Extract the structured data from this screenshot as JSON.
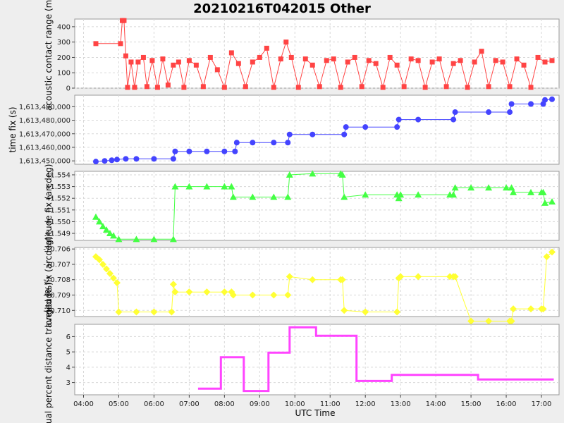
{
  "title": "20210216T042015 Other",
  "xlabel": "UTC Time",
  "x_ticks": [
    "04:00",
    "05:00",
    "06:00",
    "07:00",
    "08:00",
    "09:00",
    "10:00",
    "11:00",
    "12:00",
    "13:00",
    "14:00",
    "15:00",
    "16:00",
    "17:00"
  ],
  "colors": {
    "range": "#ff4444",
    "time": "#4444ff",
    "lat": "#44ff44",
    "lon": "#ffff33",
    "pct": "#ff44ff",
    "grid": "#d8d8d8",
    "panel_bg": "#ffffff",
    "page_bg": "#eeeeee"
  },
  "chart_data": [
    {
      "type": "line",
      "ylabel": "acoustic contact range (m)",
      "ylim": [
        0,
        450
      ],
      "yticks": [
        "0",
        "100",
        "200",
        "300",
        "400"
      ],
      "grid": true,
      "marker": "square",
      "x_range_hours": [
        3.75,
        17.5
      ],
      "x": [
        4.35,
        5.05,
        5.1,
        5.15,
        5.2,
        5.25,
        5.35,
        5.45,
        5.55,
        5.7,
        5.8,
        5.95,
        6.1,
        6.25,
        6.4,
        6.55,
        6.7,
        6.85,
        7.0,
        7.2,
        7.4,
        7.6,
        7.8,
        8.0,
        8.2,
        8.4,
        8.6,
        8.8,
        9.0,
        9.2,
        9.4,
        9.6,
        9.75,
        9.9,
        10.1,
        10.3,
        10.5,
        10.7,
        10.9,
        11.1,
        11.3,
        11.5,
        11.7,
        11.9,
        12.1,
        12.3,
        12.5,
        12.7,
        12.9,
        13.1,
        13.3,
        13.5,
        13.7,
        13.9,
        14.1,
        14.3,
        14.5,
        14.7,
        14.9,
        15.1,
        15.3,
        15.5,
        15.7,
        15.9,
        16.1,
        16.3,
        16.5,
        16.7,
        16.9,
        17.1,
        17.3
      ],
      "values": [
        290,
        290,
        440,
        440,
        210,
        5,
        170,
        5,
        170,
        200,
        10,
        180,
        5,
        190,
        20,
        150,
        170,
        5,
        180,
        150,
        10,
        200,
        120,
        5,
        230,
        160,
        10,
        170,
        200,
        260,
        5,
        190,
        300,
        200,
        5,
        190,
        150,
        10,
        180,
        190,
        5,
        170,
        200,
        10,
        180,
        160,
        5,
        200,
        150,
        10,
        190,
        180,
        5,
        170,
        190,
        10,
        160,
        180,
        5,
        170,
        240,
        10,
        180,
        170,
        10,
        190,
        150,
        5,
        200,
        170,
        180
      ]
    },
    {
      "type": "line",
      "ylabel": "time fix (s)",
      "ylim": [
        1613447500,
        1613498500
      ],
      "yticks": [
        "1,613,450,000",
        "1,613,460,000",
        "1,613,470,000",
        "1,613,480,000",
        "1,613,490,000"
      ],
      "ytick_values": [
        1613450000,
        1613460000,
        1613470000,
        1613480000,
        1613490000
      ],
      "grid": true,
      "marker": "circle",
      "x_range_hours": [
        3.75,
        17.5
      ],
      "x": [
        4.35,
        4.6,
        4.8,
        4.95,
        5.2,
        5.5,
        6.0,
        6.55,
        6.6,
        7.0,
        7.5,
        8.0,
        8.3,
        8.35,
        8.8,
        9.4,
        9.8,
        9.85,
        10.5,
        11.4,
        11.45,
        12.0,
        12.9,
        12.95,
        13.5,
        14.5,
        14.55,
        15.5,
        16.1,
        16.15,
        16.7,
        17.05,
        17.1,
        17.3
      ],
      "values": [
        1613449500,
        1613450000,
        1613450500,
        1613451000,
        1613451500,
        1613451500,
        1613451500,
        1613451500,
        1613457000,
        1613457000,
        1613457000,
        1613457000,
        1613457000,
        1613463500,
        1613463500,
        1613463500,
        1613463500,
        1613469500,
        1613469500,
        1613469500,
        1613475000,
        1613475000,
        1613475000,
        1613480500,
        1613480500,
        1613480500,
        1613486000,
        1613486000,
        1613486000,
        1613492000,
        1613492000,
        1613492000,
        1613495000,
        1613495500
      ]
    },
    {
      "type": "line",
      "ylabel": "latitude fix (arcdeg)",
      "ylim": [
        41.5484,
        41.5543
      ],
      "yticks": [
        "41.549",
        "41.550",
        "41.551",
        "41.552",
        "41.553",
        "41.554"
      ],
      "ytick_values": [
        41.549,
        41.55,
        41.551,
        41.552,
        41.553,
        41.554
      ],
      "grid": true,
      "marker": "triangle",
      "x_range_hours": [
        3.75,
        17.5
      ],
      "x": [
        4.35,
        4.45,
        4.55,
        4.65,
        4.75,
        4.85,
        5.0,
        5.5,
        6.0,
        6.55,
        6.6,
        7.0,
        7.5,
        8.0,
        8.2,
        8.25,
        8.8,
        9.4,
        9.8,
        9.85,
        10.5,
        11.3,
        11.35,
        11.4,
        12.0,
        12.9,
        12.95,
        13.0,
        13.5,
        14.4,
        14.5,
        14.55,
        15.0,
        15.5,
        16.0,
        16.15,
        16.2,
        16.7,
        17.0,
        17.05,
        17.1,
        17.3
      ],
      "values": [
        41.5504,
        41.55,
        41.5496,
        41.5493,
        41.549,
        41.5488,
        41.5485,
        41.5485,
        41.5485,
        41.5485,
        41.553,
        41.553,
        41.553,
        41.553,
        41.553,
        41.5521,
        41.5521,
        41.5521,
        41.5521,
        41.554,
        41.5541,
        41.5541,
        41.554,
        41.5521,
        41.5523,
        41.5523,
        41.552,
        41.5523,
        41.5523,
        41.5523,
        41.5523,
        41.5529,
        41.5529,
        41.5529,
        41.5529,
        41.5529,
        41.5525,
        41.5525,
        41.5525,
        41.5525,
        41.5516,
        41.5517
      ]
    },
    {
      "type": "line",
      "ylabel": "longitude fix (arcdeg)",
      "ylim": [
        -70.7104,
        -70.7059
      ],
      "yticks": [
        "-70.710",
        "-70.709",
        "-70.708",
        "-70.707",
        "-70.706"
      ],
      "ytick_values": [
        -70.71,
        -70.709,
        -70.708,
        -70.707,
        -70.706
      ],
      "grid": true,
      "marker": "diamond",
      "x_range_hours": [
        3.75,
        17.5
      ],
      "x": [
        4.35,
        4.45,
        4.55,
        4.65,
        4.75,
        4.85,
        4.95,
        5.0,
        5.5,
        6.0,
        6.5,
        6.55,
        6.6,
        7.0,
        7.5,
        8.0,
        8.2,
        8.25,
        8.8,
        9.4,
        9.8,
        9.85,
        10.5,
        11.3,
        11.35,
        11.4,
        12.0,
        12.9,
        12.95,
        13.0,
        13.5,
        14.4,
        14.5,
        14.55,
        15.0,
        15.5,
        16.1,
        16.15,
        16.2,
        16.7,
        17.0,
        17.05,
        17.15,
        17.3
      ],
      "values": [
        -70.7065,
        -70.7067,
        -70.707,
        -70.7073,
        -70.7076,
        -70.7079,
        -70.7082,
        -70.7101,
        -70.7101,
        -70.7101,
        -70.7101,
        -70.7083,
        -70.7088,
        -70.7088,
        -70.7088,
        -70.7088,
        -70.7088,
        -70.709,
        -70.709,
        -70.709,
        -70.709,
        -70.7078,
        -70.708,
        -70.708,
        -70.708,
        -70.71,
        -70.7101,
        -70.7101,
        -70.7079,
        -70.7078,
        -70.7078,
        -70.7078,
        -70.7078,
        -70.7078,
        -70.7107,
        -70.7107,
        -70.7107,
        -70.7107,
        -70.7099,
        -70.7099,
        -70.7099,
        -70.7099,
        -70.7065,
        -70.7062
      ]
    },
    {
      "type": "line",
      "ylabel": "actual percent distance traveled (%)",
      "ylim": [
        2.2,
        6.8
      ],
      "yticks": [
        "3",
        "4",
        "5",
        "6"
      ],
      "ytick_values": [
        3,
        4,
        5,
        6
      ],
      "grid": true,
      "marker": "none",
      "x_range_hours": [
        3.75,
        17.5
      ],
      "x": [
        7.25,
        7.9,
        7.9,
        7.9,
        8.55,
        8.55,
        8.55,
        9.25,
        9.25,
        9.25,
        9.85,
        9.85,
        9.85,
        10.6,
        10.6,
        10.6,
        11.75,
        11.75,
        11.75,
        12.75,
        12.75,
        12.85,
        15.2,
        15.2,
        15.2,
        17.35
      ],
      "values": [
        2.6,
        2.6,
        4.65,
        4.65,
        4.65,
        2.45,
        2.45,
        2.45,
        4.95,
        4.95,
        4.95,
        6.6,
        6.6,
        6.6,
        6.05,
        6.05,
        6.05,
        3.1,
        3.1,
        3.1,
        3.5,
        3.5,
        3.5,
        3.2,
        3.2,
        3.2
      ]
    }
  ]
}
